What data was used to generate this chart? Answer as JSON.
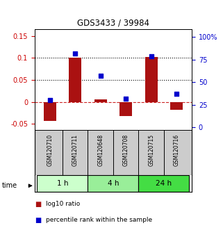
{
  "title": "GDS3433 / 39984",
  "samples": [
    "GSM120710",
    "GSM120711",
    "GSM120648",
    "GSM120708",
    "GSM120715",
    "GSM120716"
  ],
  "log10_ratio": [
    -0.043,
    0.1,
    0.005,
    -0.033,
    0.103,
    -0.018
  ],
  "percentile_rank": [
    30,
    82,
    57,
    32,
    79,
    37
  ],
  "time_groups": [
    {
      "label": "1 h",
      "indices": [
        0,
        1
      ],
      "color": "#ccffcc"
    },
    {
      "label": "4 h",
      "indices": [
        2,
        3
      ],
      "color": "#99ee99"
    },
    {
      "label": "24 h",
      "indices": [
        4,
        5
      ],
      "color": "#44dd44"
    }
  ],
  "bar_color": "#aa1111",
  "dot_color": "#0000cc",
  "ylim_left": [
    -0.065,
    0.165
  ],
  "ylim_right": [
    -3.25,
    108.25
  ],
  "yticks_left": [
    -0.05,
    0,
    0.05,
    0.1,
    0.15
  ],
  "ytick_labels_left": [
    "-0.05",
    "0",
    "0.05",
    "0.1",
    "0.15"
  ],
  "yticks_right": [
    0,
    25,
    50,
    75,
    100
  ],
  "ytick_labels_right": [
    "0",
    "25",
    "50",
    "75",
    "100%"
  ],
  "hlines": [
    0.05,
    0.1
  ],
  "left_tick_color": "#cc0000",
  "right_tick_color": "#0000cc",
  "bar_width": 0.5,
  "dot_size": 22,
  "sample_box_color": "#cccccc",
  "legend_items": [
    {
      "label": "log10 ratio",
      "color": "#aa1111"
    },
    {
      "label": "percentile rank within the sample",
      "color": "#0000cc"
    }
  ]
}
